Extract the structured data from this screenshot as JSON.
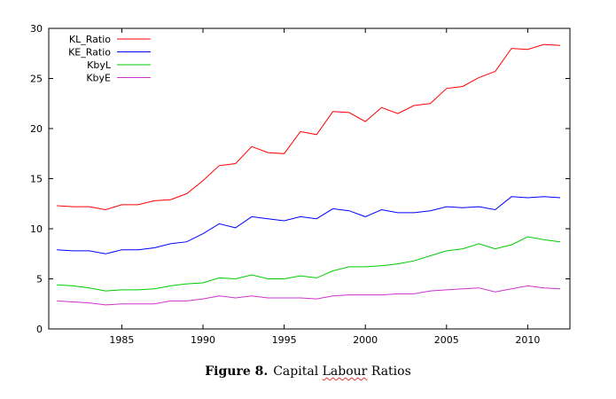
{
  "caption": {
    "figure_number": "Figure 8.",
    "title_pre": "Capital ",
    "title_flagged_word": "Labour",
    "title_post": " Ratios"
  },
  "chart_data": {
    "type": "line",
    "xlim": [
      1980.5,
      2012.6
    ],
    "ylim": [
      0,
      30
    ],
    "xticks": [
      1985,
      1990,
      1995,
      2000,
      2005,
      2010
    ],
    "yticks": [
      0,
      5,
      10,
      15,
      20,
      25,
      30
    ],
    "grid": false,
    "legend_position": "top-left",
    "x": [
      1981,
      1982,
      1983,
      1984,
      1985,
      1986,
      1987,
      1988,
      1989,
      1990,
      1991,
      1992,
      1993,
      1994,
      1995,
      1996,
      1997,
      1998,
      1999,
      2000,
      2001,
      2002,
      2003,
      2004,
      2005,
      2006,
      2007,
      2008,
      2009,
      2010,
      2011,
      2012
    ],
    "series": [
      {
        "name": "KL_Ratio",
        "color": "#ff0000",
        "values": [
          12.3,
          12.2,
          12.2,
          11.9,
          12.4,
          12.4,
          12.8,
          12.9,
          13.5,
          14.8,
          16.3,
          16.5,
          18.2,
          17.6,
          17.5,
          19.7,
          19.4,
          21.7,
          21.6,
          20.7,
          22.1,
          21.5,
          22.3,
          22.5,
          24.0,
          24.2,
          25.1,
          25.7,
          28.0,
          27.9,
          28.4,
          28.3
        ]
      },
      {
        "name": "KE_Ratio",
        "color": "#0000ff",
        "values": [
          7.9,
          7.8,
          7.8,
          7.5,
          7.9,
          7.9,
          8.1,
          8.5,
          8.7,
          9.5,
          10.5,
          10.1,
          11.2,
          11.0,
          10.8,
          11.2,
          11.0,
          12.0,
          11.8,
          11.2,
          11.9,
          11.6,
          11.6,
          11.8,
          12.2,
          12.1,
          12.2,
          11.9,
          13.2,
          13.1,
          13.2,
          13.1
        ]
      },
      {
        "name": "KbyL",
        "color": "#00cc00",
        "values": [
          4.4,
          4.3,
          4.1,
          3.8,
          3.9,
          3.9,
          4.0,
          4.3,
          4.5,
          4.6,
          5.1,
          5.0,
          5.4,
          5.0,
          5.0,
          5.3,
          5.1,
          5.8,
          6.2,
          6.2,
          6.3,
          6.5,
          6.8,
          7.3,
          7.8,
          8.0,
          8.5,
          8.0,
          8.4,
          9.2,
          8.9,
          8.7
        ]
      },
      {
        "name": "KbyE",
        "color": "#cc33cc",
        "values": [
          2.8,
          2.7,
          2.6,
          2.4,
          2.5,
          2.5,
          2.5,
          2.8,
          2.8,
          3.0,
          3.3,
          3.1,
          3.3,
          3.1,
          3.1,
          3.1,
          3.0,
          3.3,
          3.4,
          3.4,
          3.4,
          3.5,
          3.5,
          3.8,
          3.9,
          4.0,
          4.1,
          3.7,
          4.0,
          4.3,
          4.1,
          4.0
        ]
      }
    ]
  }
}
